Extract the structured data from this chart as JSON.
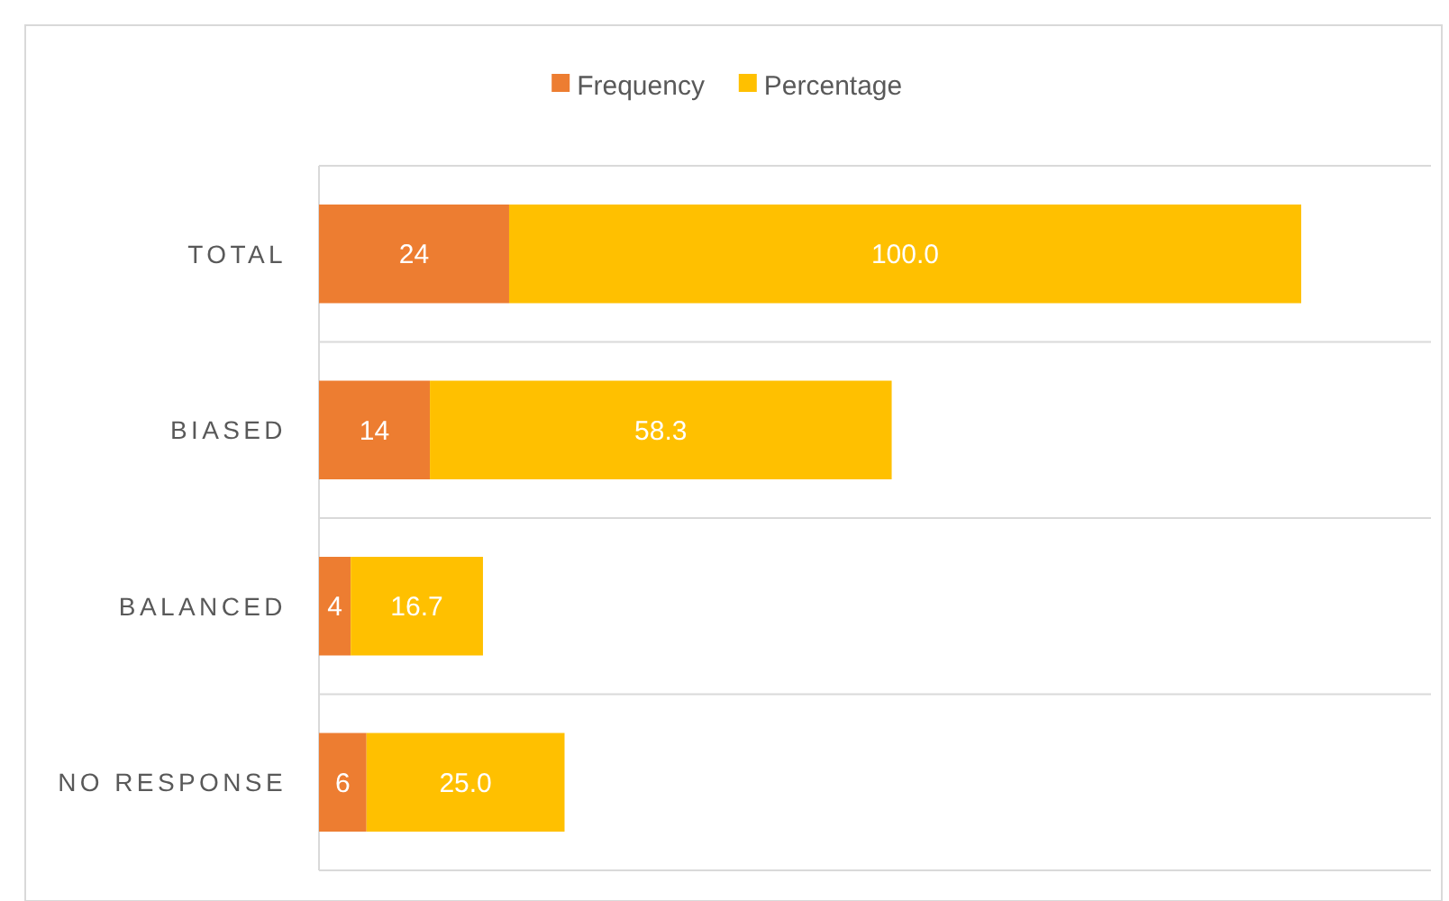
{
  "chart_data": {
    "type": "bar",
    "orientation": "horizontal",
    "stacked": true,
    "categories": [
      "TOTAL",
      "BIASED",
      "BALANCED",
      "NO RESPONSE"
    ],
    "series": [
      {
        "name": "Frequency",
        "color": "#ed7d31",
        "values": [
          24,
          14,
          4,
          6
        ],
        "value_labels": [
          "24",
          "14",
          "4",
          "6"
        ]
      },
      {
        "name": "Percentage",
        "color": "#ffc000",
        "values": [
          100.0,
          58.3,
          16.7,
          25.0
        ],
        "value_labels": [
          "100.0",
          "58.3",
          "16.7",
          "25.0"
        ]
      }
    ],
    "grid": "y",
    "legend": "top"
  }
}
